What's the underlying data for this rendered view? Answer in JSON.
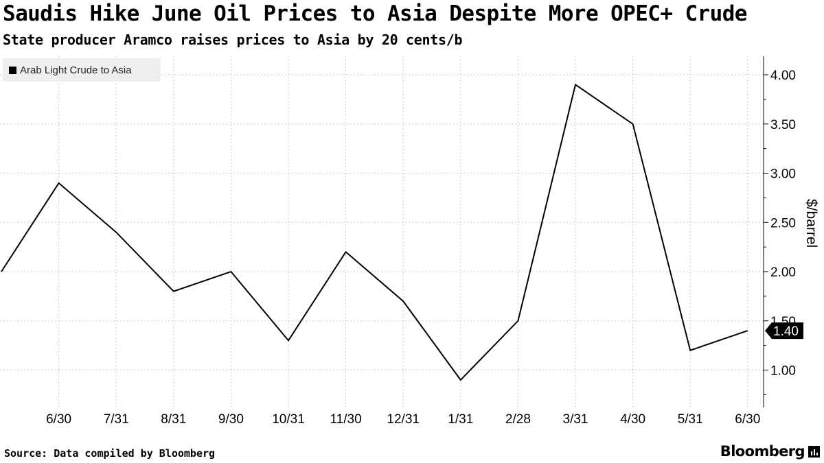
{
  "header": {
    "title": "Saudis Hike June Oil Prices to Asia Despite More OPEC+ Crude",
    "subtitle": "State producer Aramco raises prices to Asia by 20 cents/b"
  },
  "footer": {
    "source": "Source: Data compiled by Bloomberg",
    "logo": "Bloomberg"
  },
  "chart_data": {
    "type": "line",
    "title": "Saudis Hike June Oil Prices to Asia Despite More OPEC+ Crude",
    "subtitle": "State producer Aramco raises prices to Asia by 20 cents/b",
    "ylabel": "$/barrel",
    "ylim": [
      0.65,
      4.2
    ],
    "yticks": [
      "1.00",
      "1.50",
      "2.00",
      "2.50",
      "3.00",
      "3.50",
      "4.00"
    ],
    "x_tick_labels": [
      "6/30",
      "7/31",
      "8/31",
      "9/30",
      "10/31",
      "11/30",
      "12/31",
      "1/31",
      "2/28",
      "3/31",
      "4/30",
      "5/31",
      "6/30"
    ],
    "grid": true,
    "y_axis_side": "right",
    "legend_position": "top-left",
    "series": [
      {
        "name": "Arab Light Crude to Asia",
        "color": "#000000",
        "values": [
          2.0,
          2.9,
          2.4,
          1.8,
          2.0,
          1.3,
          2.2,
          1.7,
          0.9,
          1.5,
          3.9,
          3.5,
          1.2,
          1.4
        ]
      }
    ],
    "last_value_label": "1.40"
  }
}
